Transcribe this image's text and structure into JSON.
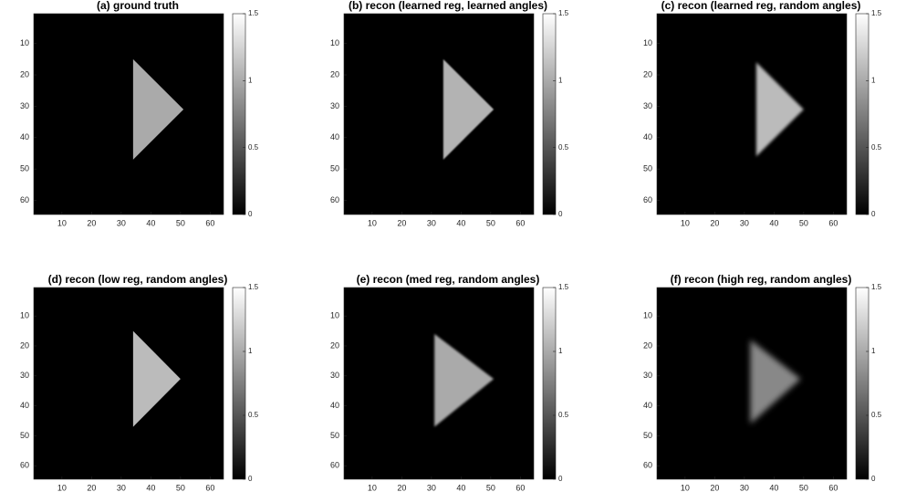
{
  "chart_data": [
    {
      "type": "image",
      "title": "(a) ground truth",
      "colormap": "gray",
      "xlim": [
        0.5,
        64.5
      ],
      "ylim": [
        0.5,
        64.5
      ],
      "xticks": [
        10,
        20,
        30,
        40,
        50,
        60
      ],
      "yticks": [
        10,
        20,
        30,
        40,
        50,
        60
      ],
      "clim": [
        0,
        1.5
      ],
      "cticks": [
        0,
        0.5,
        1,
        1.5
      ],
      "triangle": {
        "vertices": [
          [
            34,
            15
          ],
          [
            34,
            47
          ],
          [
            51,
            31
          ]
        ],
        "value": 1.0
      }
    },
    {
      "type": "image",
      "title": "(b) recon (learned reg, learned angles)",
      "colormap": "gray",
      "xlim": [
        0.5,
        64.5
      ],
      "ylim": [
        0.5,
        64.5
      ],
      "xticks": [
        10,
        20,
        30,
        40,
        50,
        60
      ],
      "yticks": [
        10,
        20,
        30,
        40,
        50,
        60
      ],
      "clim": [
        0,
        1.5
      ],
      "cticks": [
        0,
        0.5,
        1,
        1.5
      ],
      "triangle": {
        "vertices": [
          [
            34,
            15
          ],
          [
            34,
            47
          ],
          [
            51,
            31
          ]
        ],
        "value": 1.05
      }
    },
    {
      "type": "image",
      "title": "(c) recon (learned reg, random angles)",
      "colormap": "gray",
      "xlim": [
        0.5,
        64.5
      ],
      "ylim": [
        0.5,
        64.5
      ],
      "xticks": [
        10,
        20,
        30,
        40,
        50,
        60
      ],
      "yticks": [
        10,
        20,
        30,
        40,
        50,
        60
      ],
      "clim": [
        0,
        1.5
      ],
      "cticks": [
        0,
        0.5,
        1,
        1.5
      ],
      "triangle": {
        "vertices": [
          [
            34,
            16
          ],
          [
            34,
            46
          ],
          [
            50,
            31
          ]
        ],
        "value": 1.1
      }
    },
    {
      "type": "image",
      "title": "(d) recon (low reg, random angles)",
      "colormap": "gray",
      "xlim": [
        0.5,
        64.5
      ],
      "ylim": [
        0.5,
        64.5
      ],
      "xticks": [
        10,
        20,
        30,
        40,
        50,
        60
      ],
      "yticks": [
        10,
        20,
        30,
        40,
        50,
        60
      ],
      "clim": [
        0,
        1.5
      ],
      "cticks": [
        0,
        0.5,
        1,
        1.5
      ],
      "triangle": {
        "vertices": [
          [
            34,
            15
          ],
          [
            34,
            47
          ],
          [
            50,
            31
          ]
        ],
        "value": 1.1
      }
    },
    {
      "type": "image",
      "title": "(e) recon (med reg, random angles)",
      "colormap": "gray",
      "xlim": [
        0.5,
        64.5
      ],
      "ylim": [
        0.5,
        64.5
      ],
      "xticks": [
        10,
        20,
        30,
        40,
        50,
        60
      ],
      "yticks": [
        10,
        20,
        30,
        40,
        50,
        60
      ],
      "clim": [
        0,
        1.5
      ],
      "cticks": [
        0,
        0.5,
        1,
        1.5
      ],
      "triangle": {
        "vertices": [
          [
            31,
            16
          ],
          [
            31,
            47
          ],
          [
            51,
            31
          ]
        ],
        "value": 1.0
      }
    },
    {
      "type": "image",
      "title": "(f) recon (high reg, random angles)",
      "colormap": "gray",
      "xlim": [
        0.5,
        64.5
      ],
      "ylim": [
        0.5,
        64.5
      ],
      "xticks": [
        10,
        20,
        30,
        40,
        50,
        60
      ],
      "yticks": [
        10,
        20,
        30,
        40,
        50,
        60
      ],
      "clim": [
        0,
        1.5
      ],
      "cticks": [
        0,
        0.5,
        1,
        1.5
      ],
      "triangle": {
        "vertices": [
          [
            32,
            18
          ],
          [
            32,
            46
          ],
          [
            49,
            31
          ]
        ],
        "value": 0.8
      }
    }
  ]
}
